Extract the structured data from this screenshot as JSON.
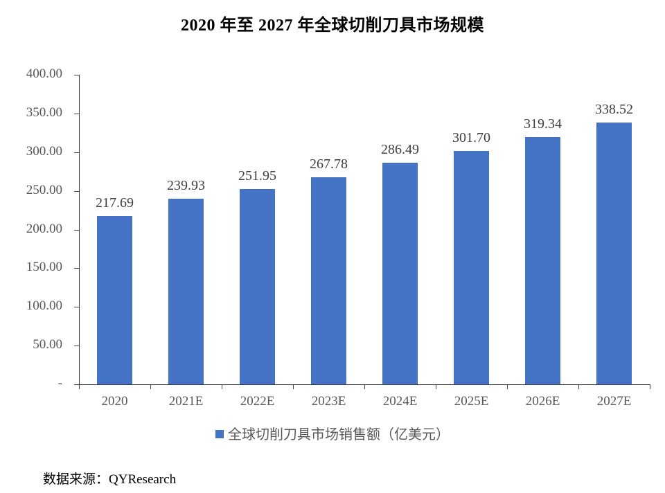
{
  "title": "2020 年至 2027 年全球切削刀具市场规模",
  "source": "数据来源：QYResearch",
  "legend": {
    "label": "全球切削刀具市场销售额（亿美元）",
    "color": "#4472c4",
    "position": "bottom"
  },
  "y_axis": {
    "ticks": [
      "-",
      "50.00",
      "100.00",
      "150.00",
      "200.00",
      "250.00",
      "300.00",
      "350.00",
      "400.00"
    ]
  },
  "x_axis": {
    "ticks": [
      "2020",
      "2021E",
      "2022E",
      "2023E",
      "2024E",
      "2025E",
      "2026E",
      "2027E"
    ]
  },
  "bar_labels": [
    "217.69",
    "239.93",
    "251.95",
    "267.78",
    "286.49",
    "301.70",
    "319.34",
    "338.52"
  ],
  "chart_data": {
    "type": "bar",
    "title": "2020 年至 2027 年全球切削刀具市场规模",
    "categories": [
      "2020",
      "2021E",
      "2022E",
      "2023E",
      "2024E",
      "2025E",
      "2026E",
      "2027E"
    ],
    "series": [
      {
        "name": "全球切削刀具市场销售额（亿美元）",
        "values": [
          217.69,
          239.93,
          251.95,
          267.78,
          286.49,
          301.7,
          319.34,
          338.52
        ],
        "color": "#4472c4"
      }
    ],
    "xlabel": "",
    "ylabel": "",
    "ylim": [
      0,
      400
    ],
    "yticks": [
      0,
      50,
      100,
      150,
      200,
      250,
      300,
      350,
      400
    ],
    "grid": false,
    "legend_position": "bottom",
    "data_labels": true,
    "source": "QYResearch"
  }
}
